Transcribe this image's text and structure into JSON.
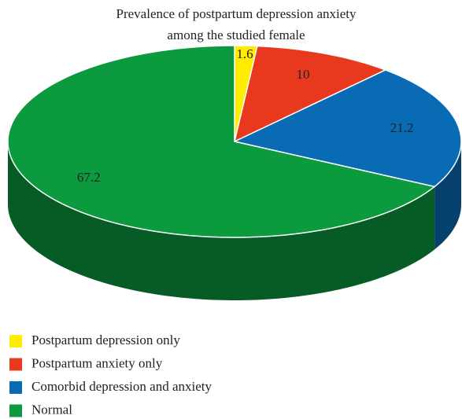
{
  "chart_data": {
    "type": "pie",
    "title": "Prevalence of postpartum depression anxiety among the studied female",
    "categories": [
      "Postpartum depression only",
      "Postpartum anxiety only",
      "Comorbid depression and anxiety",
      "Normal"
    ],
    "values": [
      1.6,
      10,
      21.2,
      67.2
    ],
    "colors": [
      "#ffec00",
      "#e8391f",
      "#0a6bb5",
      "#0c9a3f"
    ],
    "legend": "bottom-left"
  }
}
